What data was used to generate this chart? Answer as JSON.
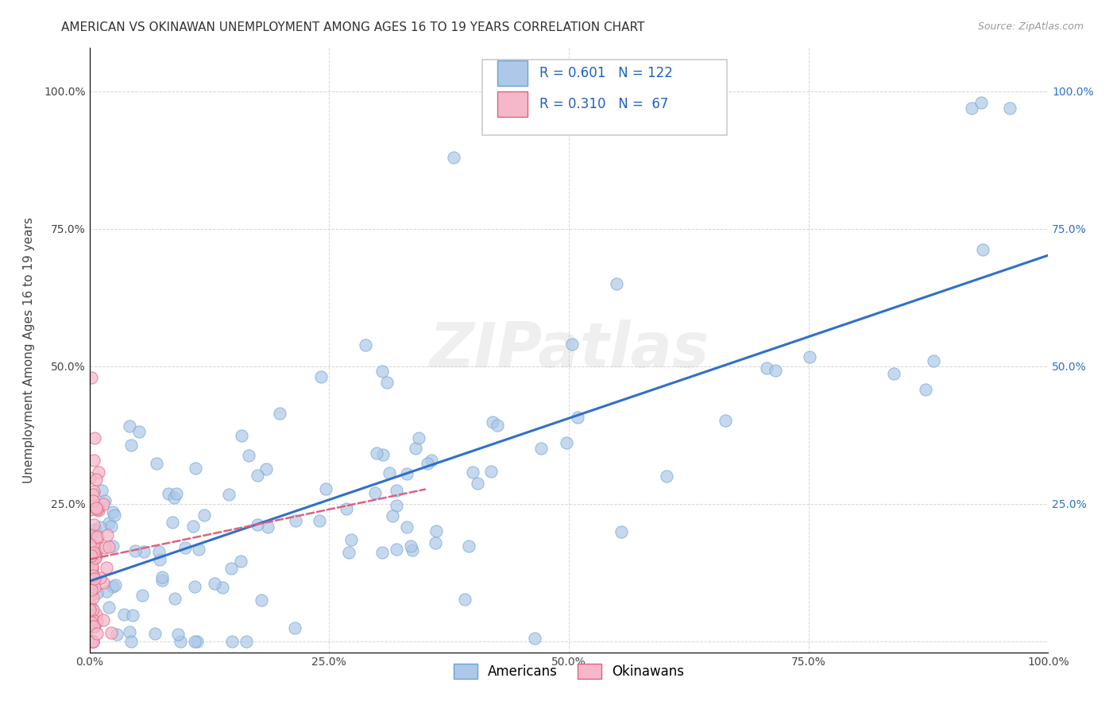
{
  "title": "AMERICAN VS OKINAWAN UNEMPLOYMENT AMONG AGES 16 TO 19 YEARS CORRELATION CHART",
  "source": "Source: ZipAtlas.com",
  "ylabel": "Unemployment Among Ages 16 to 19 years",
  "x_tick_labels": [
    "0.0%",
    "25.0%",
    "50.0%",
    "75.0%",
    "100.0%"
  ],
  "x_tick_vals": [
    0,
    0.25,
    0.5,
    0.75,
    1.0
  ],
  "y_tick_labels": [
    "",
    "25.0%",
    "50.0%",
    "75.0%",
    "100.0%"
  ],
  "y_tick_vals": [
    0,
    0.25,
    0.5,
    0.75,
    1.0
  ],
  "legend_label1": "Americans",
  "legend_label2": "Okinawans",
  "r_american": 0.601,
  "n_american": 122,
  "r_okinawan": 0.31,
  "n_okinawan": 67,
  "american_color": "#adc8e8",
  "american_edge_color": "#6aa3d4",
  "okinawan_color": "#f5b8ca",
  "okinawan_edge_color": "#e0607a",
  "regression_american_color": "#3070c8",
  "regression_okinawan_color": "#e06080",
  "background_color": "#ffffff",
  "grid_color": "#cccccc",
  "watermark": "ZIPatlas",
  "title_fontsize": 11,
  "axis_label_fontsize": 11,
  "tick_fontsize": 10,
  "legend_fontsize": 12,
  "xlim": [
    0,
    1.0
  ],
  "ylim": [
    -0.02,
    1.08
  ],
  "dot_size": 120
}
